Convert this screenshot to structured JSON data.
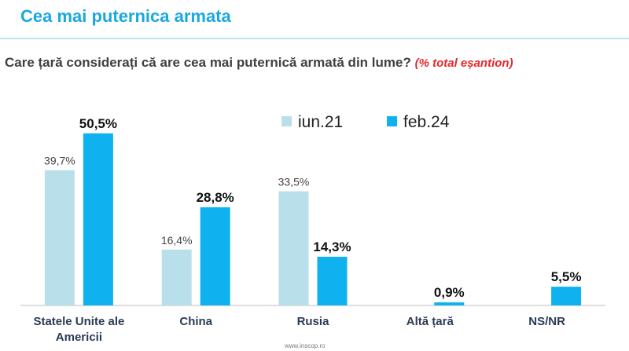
{
  "header": {
    "title": "Cea mai puternica armata"
  },
  "question": {
    "text": "Care țară considerați că are cea mai puternică armată din lume?",
    "note": "(% total eșantion)"
  },
  "footer": {
    "source": "www.inscop.ro"
  },
  "colors": {
    "title": "#1aa8e0",
    "iun21": "#b9dfea",
    "feb24": "#0fb2ee",
    "note": "#e8262b"
  },
  "chart_data": {
    "type": "bar",
    "categories": [
      "Statele Unite ale Americii",
      "China",
      "Rusia",
      "Altă țară",
      "NS/NR"
    ],
    "series": [
      {
        "name": "iun.21",
        "values": [
          39.7,
          16.4,
          33.5,
          null,
          null
        ],
        "labels": [
          "39,7%",
          "16,4%",
          "33,5%",
          "",
          ""
        ]
      },
      {
        "name": "feb.24",
        "values": [
          50.5,
          28.8,
          14.3,
          0.9,
          5.5
        ],
        "labels": [
          "50,5%",
          "28,8%",
          "14,3%",
          "0,9%",
          "5,5%"
        ]
      }
    ],
    "legend_position": "top-center",
    "grid": false,
    "ylim": [
      0,
      60
    ]
  }
}
